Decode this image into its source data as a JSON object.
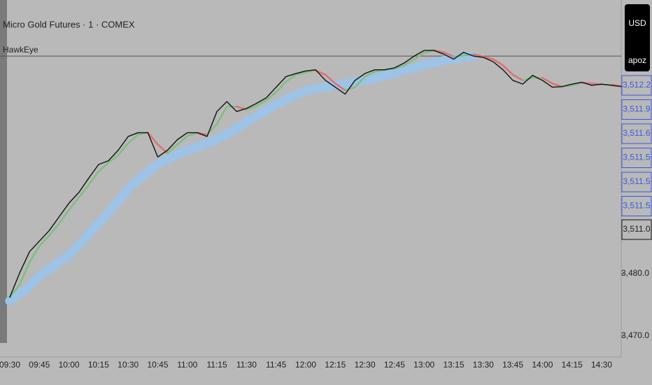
{
  "chart_data": {
    "type": "line",
    "title": "Micro Gold Futures · 1 · COMEX",
    "subtitle": "HawkEye",
    "currency": "USD",
    "badge": "apoz",
    "categories": [
      "09:30",
      null,
      null,
      "09:45",
      null,
      null,
      "10:00",
      null,
      null,
      "10:15",
      null,
      null,
      "10:30",
      null,
      null,
      "10:45",
      null,
      null,
      "11:00",
      null,
      null,
      "11:15",
      null,
      null,
      "11:30",
      null,
      null,
      "11:45",
      null,
      null,
      "12:00",
      null,
      null,
      "12:15",
      null,
      null,
      "12:30",
      null,
      null,
      "12:45",
      null,
      null,
      "13:00",
      null,
      null,
      "13:15",
      null,
      null,
      "13:30",
      null,
      null,
      "13:45",
      null,
      null,
      "14:00",
      null,
      null,
      "14:15",
      null,
      null,
      "14:30",
      null,
      null
    ],
    "series": [
      {
        "color": "#9dc3e6",
        "values": [
          3475.6,
          3476.7,
          3477.9,
          3479.6,
          3480.7,
          3481.8,
          3482.9,
          3484.6,
          3486.3,
          3488.0,
          3489.7,
          3491.6,
          3493.6,
          3495.0,
          3496.3,
          3497.5,
          3498.3,
          3499.1,
          3499.8,
          3500.3,
          3500.9,
          3501.5,
          3502.4,
          3503.3,
          3504.3,
          3505.2,
          3506.2,
          3507.1,
          3507.9,
          3508.7,
          3509.3,
          3509.7,
          3509.9,
          3510.2,
          3510.4,
          3510.8,
          3511.0,
          3511.3,
          3511.8,
          3512.1,
          3512.7,
          3513.0,
          3513.5,
          3513.8,
          3514.2,
          3514.4,
          3514.7,
          3514.9,
          null,
          null,
          null,
          null,
          null,
          null,
          null,
          null,
          null,
          null,
          null,
          null,
          null,
          null,
          null
        ]
      },
      {
        "color": "#7fbf7f",
        "down_color": "#e07070",
        "values": [
          3476.2,
          3478.2,
          3481.8,
          3484.4,
          3486.1,
          3488.0,
          3490.2,
          3492.2,
          3494.2,
          3496.4,
          3497.8,
          3499.0,
          3500.9,
          3502.3,
          3502.6,
          3500.7,
          3499.3,
          3500.7,
          3502.1,
          3502.6,
          3502.3,
          3504.0,
          3506.8,
          3506.8,
          3506.3,
          3506.9,
          3507.8,
          3509.1,
          3510.8,
          3511.9,
          3512.3,
          3512.6,
          3511.9,
          3510.5,
          3509.4,
          3509.9,
          3511.6,
          3512.4,
          3512.7,
          3512.9,
          3513.4,
          3514.4,
          3515.4,
          3515.8,
          3515.5,
          3514.8,
          3515.0,
          3515.2,
          3514.8,
          3514.4,
          3513.4,
          3511.9,
          3511.0,
          3511.4,
          3511.4,
          3510.5,
          3510.0,
          3510.2,
          3510.6,
          3510.5,
          3510.3,
          3510.3,
          3510.1
        ]
      },
      {
        "color": "#111111",
        "values": [
          3476.2,
          3480.1,
          3483.5,
          3485.2,
          3486.9,
          3489.1,
          3491.3,
          3493.0,
          3495.3,
          3497.5,
          3498.1,
          3499.8,
          3502.0,
          3502.6,
          3502.6,
          3498.7,
          3499.8,
          3501.5,
          3502.6,
          3502.6,
          3502.0,
          3506.0,
          3507.6,
          3506.0,
          3506.5,
          3507.3,
          3508.2,
          3509.9,
          3511.6,
          3512.1,
          3512.5,
          3512.7,
          3511.0,
          3509.9,
          3508.8,
          3511.0,
          3512.1,
          3512.7,
          3512.7,
          3513.0,
          3513.8,
          3514.9,
          3515.8,
          3515.8,
          3515.2,
          3514.4,
          3515.5,
          3514.9,
          3514.7,
          3514.0,
          3512.7,
          3511.0,
          3510.4,
          3511.8,
          3511.0,
          3509.9,
          3510.0,
          3510.4,
          3510.7,
          3510.2,
          3510.4,
          3510.2,
          3510.0
        ]
      }
    ],
    "price_line": 3514.9,
    "price_labels": [
      "3,512.2",
      "3,511.9",
      "3,511.6",
      "3,511.5",
      "3,511.5",
      "3,511.5"
    ],
    "last_price": "3,511.0",
    "ylim": [
      3466.6,
      3523.9
    ],
    "yticks": [
      {
        "value": 3470,
        "label": "3,470.0"
      },
      {
        "value": 3480,
        "label": "3,480.0"
      }
    ]
  }
}
